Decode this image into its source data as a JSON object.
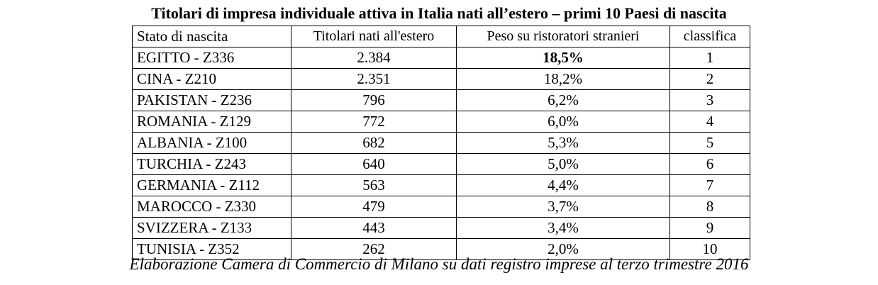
{
  "title": "Titolari di impresa individuale attiva in Italia nati all’estero – primi 10 Paesi di nascita",
  "table": {
    "headers": [
      "Stato di nascita",
      "Titolari nati all'estero",
      "Peso su ristoratori stranieri",
      "classifica"
    ],
    "rows": [
      {
        "stato": "EGITTO - Z336",
        "titolari": "2.384",
        "peso": "18,5%",
        "classifica": "1"
      },
      {
        "stato": "CINA - Z210",
        "titolari": "2.351",
        "peso": "18,2%",
        "classifica": "2"
      },
      {
        "stato": "PAKISTAN - Z236",
        "titolari": "796",
        "peso": "6,2%",
        "classifica": "3"
      },
      {
        "stato": "ROMANIA - Z129",
        "titolari": "772",
        "peso": "6,0%",
        "classifica": "4"
      },
      {
        "stato": "ALBANIA - Z100",
        "titolari": "682",
        "peso": "5,3%",
        "classifica": "5"
      },
      {
        "stato": "TURCHIA - Z243",
        "titolari": "640",
        "peso": "5,0%",
        "classifica": "6"
      },
      {
        "stato": "GERMANIA - Z112",
        "titolari": "563",
        "peso": "4,4%",
        "classifica": "7"
      },
      {
        "stato": "MAROCCO - Z330",
        "titolari": "479",
        "peso": "3,7%",
        "classifica": "8"
      },
      {
        "stato": "SVIZZERA - Z133",
        "titolari": "443",
        "peso": "3,4%",
        "classifica": "9"
      },
      {
        "stato": "TUNISIA - Z352",
        "titolari": "262",
        "peso": "2,0%",
        "classifica": "10"
      }
    ]
  },
  "footer": "Elaborazione Camera di Commercio di Milano su dati registro imprese al terzo trimestre 2016"
}
